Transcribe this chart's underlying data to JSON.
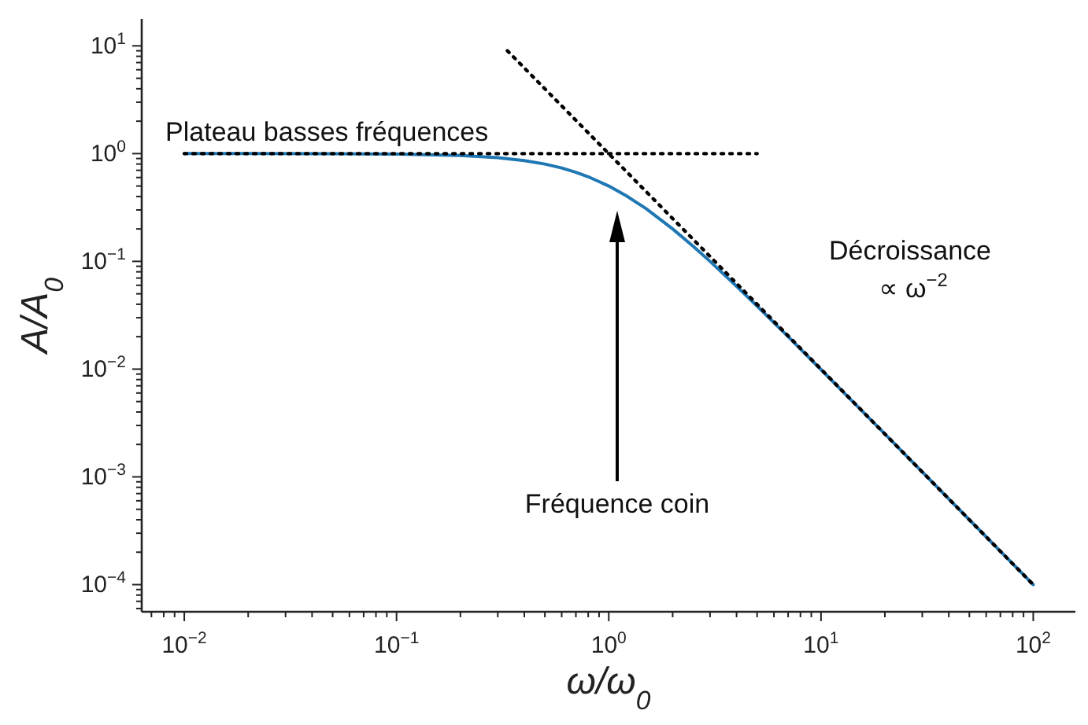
{
  "chart_data": {
    "type": "line",
    "xlabel": "ω/ω$_{0}$",
    "ylabel": "A/A$_{0}$",
    "log": "xy",
    "grid": false,
    "marker": "none",
    "xlim": [
      0.0063,
      158
    ],
    "ylim": [
      5.6e-05,
      17.8
    ],
    "xticks": [
      {
        "value": 0.007,
        "label": null
      },
      {
        "value": 0.008,
        "label": null
      },
      {
        "value": 0.009,
        "label": null
      },
      {
        "value": 0.01,
        "label": "10$^{−2}$"
      },
      {
        "value": 0.02,
        "label": null
      },
      {
        "value": 0.03,
        "label": null
      },
      {
        "value": 0.04,
        "label": null
      },
      {
        "value": 0.05,
        "label": null
      },
      {
        "value": 0.06,
        "label": null
      },
      {
        "value": 0.07,
        "label": null
      },
      {
        "value": 0.08,
        "label": null
      },
      {
        "value": 0.09,
        "label": null
      },
      {
        "value": 0.1,
        "label": "10$^{−1}$"
      },
      {
        "value": 0.2,
        "label": null
      },
      {
        "value": 0.3,
        "label": null
      },
      {
        "value": 0.4,
        "label": null
      },
      {
        "value": 0.5,
        "label": null
      },
      {
        "value": 0.6,
        "label": null
      },
      {
        "value": 0.7,
        "label": null
      },
      {
        "value": 0.8,
        "label": null
      },
      {
        "value": 0.9,
        "label": null
      },
      {
        "value": 1,
        "label": "10$^{0}$"
      },
      {
        "value": 2,
        "label": null
      },
      {
        "value": 3,
        "label": null
      },
      {
        "value": 4,
        "label": null
      },
      {
        "value": 5,
        "label": null
      },
      {
        "value": 6,
        "label": null
      },
      {
        "value": 7,
        "label": null
      },
      {
        "value": 8,
        "label": null
      },
      {
        "value": 9,
        "label": null
      },
      {
        "value": 10,
        "label": "10$^{1}$"
      },
      {
        "value": 20,
        "label": null
      },
      {
        "value": 30,
        "label": null
      },
      {
        "value": 40,
        "label": null
      },
      {
        "value": 50,
        "label": null
      },
      {
        "value": 60,
        "label": null
      },
      {
        "value": 70,
        "label": null
      },
      {
        "value": 80,
        "label": null
      },
      {
        "value": 90,
        "label": null
      },
      {
        "value": 100,
        "label": "10$^{2}$"
      }
    ],
    "yticks": [
      {
        "value": 6e-05,
        "label": null
      },
      {
        "value": 7e-05,
        "label": null
      },
      {
        "value": 8e-05,
        "label": null
      },
      {
        "value": 9e-05,
        "label": null
      },
      {
        "value": 0.0001,
        "label": "10$^{−4}$"
      },
      {
        "value": 0.0002,
        "label": null
      },
      {
        "value": 0.0003,
        "label": null
      },
      {
        "value": 0.0004,
        "label": null
      },
      {
        "value": 0.0005,
        "label": null
      },
      {
        "value": 0.0006,
        "label": null
      },
      {
        "value": 0.0007,
        "label": null
      },
      {
        "value": 0.0008,
        "label": null
      },
      {
        "value": 0.0009,
        "label": null
      },
      {
        "value": 0.001,
        "label": "10$^{−3}$"
      },
      {
        "value": 0.002,
        "label": null
      },
      {
        "value": 0.003,
        "label": null
      },
      {
        "value": 0.004,
        "label": null
      },
      {
        "value": 0.005,
        "label": null
      },
      {
        "value": 0.006,
        "label": null
      },
      {
        "value": 0.007,
        "label": null
      },
      {
        "value": 0.008,
        "label": null
      },
      {
        "value": 0.009,
        "label": null
      },
      {
        "value": 0.01,
        "label": "10$^{−2}$"
      },
      {
        "value": 0.02,
        "label": null
      },
      {
        "value": 0.03,
        "label": null
      },
      {
        "value": 0.04,
        "label": null
      },
      {
        "value": 0.05,
        "label": null
      },
      {
        "value": 0.06,
        "label": null
      },
      {
        "value": 0.07,
        "label": null
      },
      {
        "value": 0.08,
        "label": null
      },
      {
        "value": 0.09,
        "label": null
      },
      {
        "value": 0.1,
        "label": "10$^{−1}$"
      },
      {
        "value": 0.2,
        "label": null
      },
      {
        "value": 0.3,
        "label": null
      },
      {
        "value": 0.4,
        "label": null
      },
      {
        "value": 0.5,
        "label": null
      },
      {
        "value": 0.6,
        "label": null
      },
      {
        "value": 0.7,
        "label": null
      },
      {
        "value": 0.8,
        "label": null
      },
      {
        "value": 0.9,
        "label": null
      },
      {
        "value": 1,
        "label": "10$^{0}$"
      },
      {
        "value": 2,
        "label": null
      },
      {
        "value": 3,
        "label": null
      },
      {
        "value": 4,
        "label": null
      },
      {
        "value": 5,
        "label": null
      },
      {
        "value": 6,
        "label": null
      },
      {
        "value": 7,
        "label": null
      },
      {
        "value": 8,
        "label": null
      },
      {
        "value": 9,
        "label": null
      },
      {
        "value": 10,
        "label": "10$^{1}$"
      }
    ],
    "series": [
      {
        "type": "line",
        "color": "#1f77b4",
        "line_style": "solid",
        "x": [
          0.01,
          0.02,
          0.05,
          0.1,
          0.2,
          0.3,
          0.4,
          0.5,
          0.6,
          0.7,
          0.8,
          1,
          1.2,
          1.5,
          2,
          2.5,
          3,
          4,
          5,
          7,
          10,
          20,
          50,
          100
        ],
        "values": [
          1,
          1,
          0.998,
          0.99,
          0.962,
          0.917,
          0.862,
          0.8,
          0.735,
          0.671,
          0.61,
          0.5,
          0.41,
          0.308,
          0.2,
          0.138,
          0.1,
          0.0588,
          0.0385,
          0.02,
          0.0099,
          0.0025,
          0.0004,
          0.0001
        ]
      },
      {
        "type": "line",
        "color": "#000000",
        "line_style": "dotted",
        "x": [
          0.01,
          5
        ],
        "values": [
          1,
          1
        ]
      },
      {
        "type": "line",
        "color": "#000000",
        "line_style": "dotted",
        "x": [
          0.333,
          100
        ],
        "values": [
          9,
          0.0001
        ]
      }
    ],
    "annotations": [
      {
        "text": "Plateau basses fréquences",
        "x": 0.01,
        "y": 1
      },
      "Décroissance",
      "∝ ω$^{−2}$",
      "Fréquence coin"
    ]
  }
}
